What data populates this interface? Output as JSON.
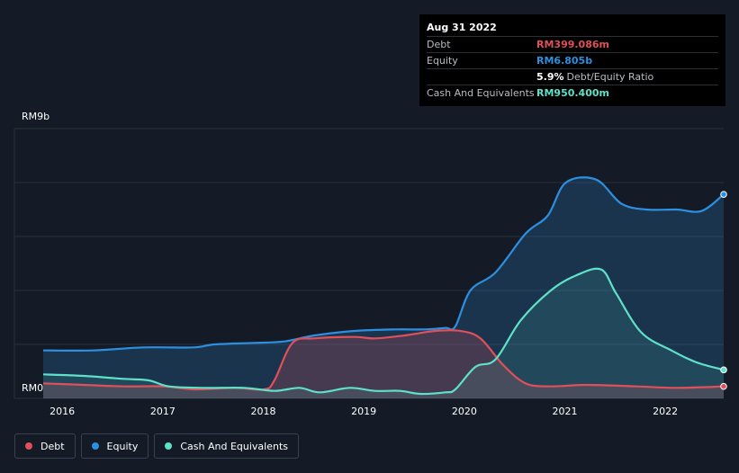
{
  "tooltip": {
    "date": "Aug 31 2022",
    "debt_label": "Debt",
    "debt_value": "RM399.086m",
    "equity_label": "Equity",
    "equity_value": "RM6.805b",
    "ratio_pct": "5.9%",
    "ratio_label": "Debt/Equity Ratio",
    "cash_label": "Cash And Equivalents",
    "cash_value": "RM950.400m"
  },
  "legend": [
    {
      "label": "Debt",
      "color": "#e0505a"
    },
    {
      "label": "Equity",
      "color": "#2d8fe0"
    },
    {
      "label": "Cash And Equivalents",
      "color": "#5fe0c8"
    }
  ],
  "colors": {
    "debt": "#e0505a",
    "equity": "#2d8fe0",
    "cash": "#5fe0c8",
    "background": "#151b26",
    "tooltip_bg": "#000000"
  },
  "chart_data": {
    "type": "area",
    "title": "",
    "xlabel": "",
    "ylabel": "",
    "ylim": [
      0,
      9
    ],
    "y_unit": "RM b",
    "y_tick_labels": [
      {
        "value": 9,
        "label": "RM9b"
      },
      {
        "value": 0,
        "label": "RM0"
      }
    ],
    "gridlines": [
      0,
      1.8,
      3.6,
      5.4,
      7.2,
      9
    ],
    "xlim": [
      2015.9,
      2022.67
    ],
    "x_ticks": [
      2016,
      2017,
      2018,
      2019,
      2020,
      2021,
      2022
    ],
    "x_tick_labels": [
      "2016",
      "2017",
      "2018",
      "2019",
      "2020",
      "2021",
      "2022"
    ],
    "series": [
      {
        "name": "Equity",
        "color": "#2d8fe0",
        "points": [
          [
            2015.9,
            1.6
          ],
          [
            2016.4,
            1.6
          ],
          [
            2016.9,
            1.7
          ],
          [
            2017.4,
            1.7
          ],
          [
            2017.6,
            1.8
          ],
          [
            2018.0,
            1.85
          ],
          [
            2018.3,
            1.9
          ],
          [
            2018.6,
            2.1
          ],
          [
            2019.0,
            2.25
          ],
          [
            2019.4,
            2.3
          ],
          [
            2019.7,
            2.3
          ],
          [
            2019.9,
            2.35
          ],
          [
            2020.0,
            2.4
          ],
          [
            2020.15,
            3.6
          ],
          [
            2020.4,
            4.2
          ],
          [
            2020.7,
            5.5
          ],
          [
            2020.92,
            6.1
          ],
          [
            2021.1,
            7.2
          ],
          [
            2021.4,
            7.3
          ],
          [
            2021.65,
            6.5
          ],
          [
            2021.9,
            6.3
          ],
          [
            2022.2,
            6.3
          ],
          [
            2022.45,
            6.25
          ],
          [
            2022.67,
            6.805
          ]
        ]
      },
      {
        "name": "Debt",
        "color": "#e0505a",
        "points": [
          [
            2015.9,
            0.5
          ],
          [
            2016.3,
            0.45
          ],
          [
            2016.7,
            0.4
          ],
          [
            2017.1,
            0.4
          ],
          [
            2017.4,
            0.3
          ],
          [
            2017.8,
            0.35
          ],
          [
            2018.1,
            0.3
          ],
          [
            2018.2,
            0.6
          ],
          [
            2018.38,
            1.85
          ],
          [
            2018.6,
            2.0
          ],
          [
            2019.0,
            2.05
          ],
          [
            2019.2,
            2.0
          ],
          [
            2019.5,
            2.1
          ],
          [
            2019.8,
            2.25
          ],
          [
            2020.05,
            2.25
          ],
          [
            2020.25,
            2.0
          ],
          [
            2020.48,
            1.1
          ],
          [
            2020.7,
            0.5
          ],
          [
            2020.95,
            0.4
          ],
          [
            2021.3,
            0.45
          ],
          [
            2021.8,
            0.4
          ],
          [
            2022.2,
            0.35
          ],
          [
            2022.67,
            0.399
          ]
        ]
      },
      {
        "name": "Cash And Equivalents",
        "color": "#5fe0c8",
        "points": [
          [
            2015.9,
            0.8
          ],
          [
            2016.3,
            0.75
          ],
          [
            2016.7,
            0.65
          ],
          [
            2016.95,
            0.6
          ],
          [
            2017.15,
            0.4
          ],
          [
            2017.5,
            0.35
          ],
          [
            2017.9,
            0.35
          ],
          [
            2018.2,
            0.25
          ],
          [
            2018.45,
            0.35
          ],
          [
            2018.65,
            0.2
          ],
          [
            2018.95,
            0.35
          ],
          [
            2019.2,
            0.25
          ],
          [
            2019.45,
            0.25
          ],
          [
            2019.65,
            0.15
          ],
          [
            2019.9,
            0.2
          ],
          [
            2020.0,
            0.3
          ],
          [
            2020.2,
            1.05
          ],
          [
            2020.4,
            1.3
          ],
          [
            2020.65,
            2.6
          ],
          [
            2020.95,
            3.6
          ],
          [
            2021.2,
            4.1
          ],
          [
            2021.45,
            4.3
          ],
          [
            2021.6,
            3.5
          ],
          [
            2021.85,
            2.2
          ],
          [
            2022.15,
            1.6
          ],
          [
            2022.4,
            1.2
          ],
          [
            2022.67,
            0.9504
          ]
        ]
      }
    ],
    "legend_position": "bottom-left",
    "grid": true
  }
}
